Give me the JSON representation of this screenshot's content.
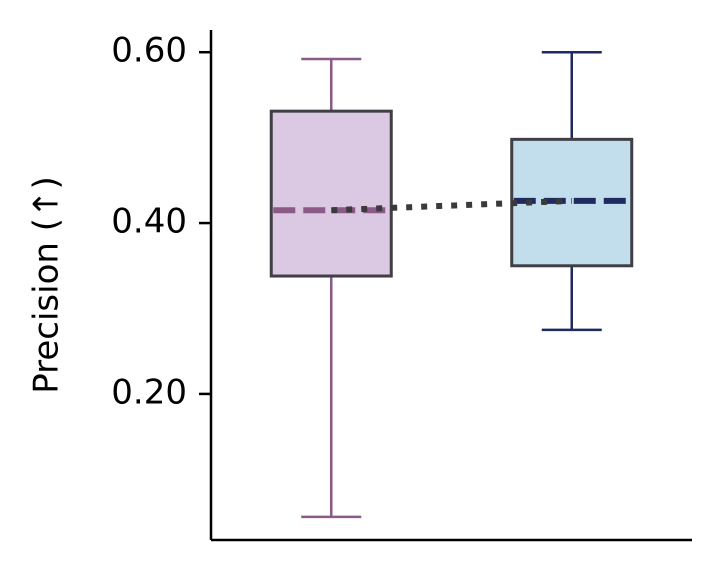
{
  "chart_data": {
    "type": "box",
    "y_label": "Precision (↑)",
    "ylim": [
      0.029,
      0.626
    ],
    "yticks": [
      {
        "value": 0.2,
        "label": "0.20"
      },
      {
        "value": 0.4,
        "label": "0.40"
      },
      {
        "value": 0.6,
        "label": "0.60"
      }
    ],
    "series": [
      {
        "color": "#8b5a87",
        "fill": "#dbc8e2",
        "whislo": 0.056,
        "q1": 0.338,
        "med": 0.415,
        "q3": 0.531,
        "whishi": 0.592
      },
      {
        "color": "#1f2a5e",
        "fill": "#c2deec",
        "whislo": 0.275,
        "q1": 0.35,
        "med": 0.426,
        "q3": 0.498,
        "whishi": 0.6
      }
    ],
    "median_line_color": "#3a3a3a"
  }
}
